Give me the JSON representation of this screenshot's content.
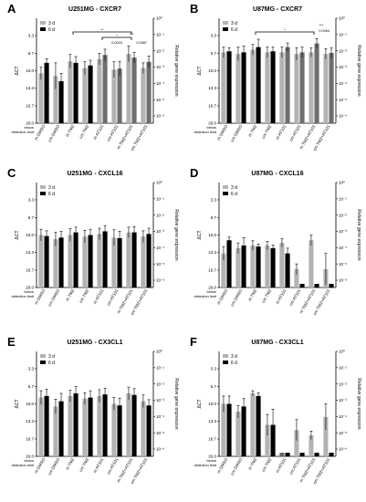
{
  "chart_data": [
    {
      "letter": "A",
      "title": "U251MG - CXCR7",
      "type": "bar",
      "categories": [
        "m DMSO",
        "cm DMSO",
        "m TMZ",
        "cm TMZ",
        "m AT101",
        "cm AT101",
        "m TMZ+AT101",
        "cm TMZ+AT101"
      ],
      "series": [
        {
          "name": "3 d",
          "values": [
            10.5,
            11.0,
            8.2,
            9.5,
            7.8,
            9.8,
            6.8,
            9.5
          ],
          "errors": [
            1.2,
            2.5,
            1.3,
            1.2,
            1.1,
            1.5,
            1.5,
            1.0
          ]
        },
        {
          "name": "6 d",
          "values": [
            8.5,
            12.0,
            8.5,
            9.0,
            7.0,
            9.6,
            7.5,
            8.3
          ],
          "errors": [
            0.8,
            1.5,
            1.2,
            1.0,
            1.1,
            1.4,
            1.0,
            1.1
          ]
        }
      ],
      "ylabel": "ΔCT",
      "y2label": "Relative gene expression",
      "yticks": [
        "3.3",
        "6.7",
        "10.0",
        "13.3",
        "16.7",
        "20.0"
      ],
      "y2ticks": [
        "10⁰",
        "10⁻¹",
        "10⁻²",
        "10⁻³",
        "10⁻⁴",
        "10⁻⁵",
        "10⁻⁶"
      ],
      "ylim": [
        20,
        0
      ],
      "below_label": [
        "below",
        "detection limit"
      ],
      "legend": "top-left",
      "annotations": [
        "**",
        "*",
        "***",
        "0.0016",
        "0.0587"
      ]
    },
    {
      "letter": "B",
      "title": "U87MG - CXCR7",
      "type": "bar",
      "categories": [
        "m DMSO",
        "cm DMSO",
        "m TMZ",
        "cm TMZ",
        "m AT101",
        "cm AT101",
        "m TMZ+AT101",
        "cm TMZ+AT101"
      ],
      "series": [
        {
          "name": "3 d",
          "values": [
            6.5,
            6.8,
            6.0,
            6.5,
            6.5,
            6.8,
            6.5,
            6.8
          ],
          "errors": [
            1.0,
            1.3,
            1.0,
            1.0,
            1.0,
            1.2,
            0.9,
            1.0
          ]
        },
        {
          "name": "6 d",
          "values": [
            6.3,
            6.5,
            5.5,
            6.3,
            5.5,
            6.5,
            4.8,
            6.6
          ],
          "errors": [
            0.7,
            1.2,
            1.5,
            0.8,
            0.8,
            1.0,
            0.9,
            1.0
          ]
        }
      ],
      "ylabel": "ΔCT",
      "y2label": "Relative gene expression",
      "yticks": [
        "3.3",
        "6.7",
        "10.0",
        "13.3",
        "16.7",
        "20.0"
      ],
      "y2ticks": [
        "10⁰",
        "10⁻¹",
        "10⁻²",
        "10⁻³",
        "10⁻⁴",
        "10⁻⁵",
        "10⁻⁶"
      ],
      "ylim": [
        20,
        0
      ],
      "below_label": [
        "below",
        "detection limit"
      ],
      "legend": "top-left",
      "annotations": [
        "*",
        "***",
        "0.0064"
      ]
    },
    {
      "letter": "C",
      "title": "U251MG - CXCL16",
      "type": "bar",
      "categories": [
        "m DMSO",
        "cm DMSO",
        "m TMZ",
        "cm TMZ",
        "m AT101",
        "cm AT101",
        "m TMZ+AT101",
        "cm TMZ+AT101"
      ],
      "series": [
        {
          "name": "3 d",
          "values": [
            10.0,
            10.8,
            10.0,
            10.3,
            9.8,
            10.5,
            9.5,
            10.3
          ],
          "errors": [
            1.1,
            1.3,
            1.2,
            1.2,
            1.1,
            1.5,
            1.0,
            1.1
          ]
        },
        {
          "name": "6 d",
          "values": [
            10.2,
            10.5,
            9.5,
            10.0,
            9.3,
            10.6,
            9.5,
            9.8
          ],
          "errors": [
            1.0,
            1.2,
            1.0,
            1.1,
            1.1,
            1.3,
            1.1,
            1.1
          ]
        }
      ],
      "ylabel": "ΔCT",
      "y2label": "Relative gene expression",
      "yticks": [
        "3.3",
        "6.7",
        "10.0",
        "13.3",
        "16.7",
        "20.0"
      ],
      "y2ticks": [
        "10⁰",
        "10⁻¹",
        "10⁻²",
        "10⁻³",
        "10⁻⁴",
        "10⁻⁵",
        "10⁻⁶"
      ],
      "ylim": [
        20,
        0
      ],
      "below_label": [
        "below",
        "detection limit"
      ],
      "legend": "top-left",
      "annotations": []
    },
    {
      "letter": "D",
      "title": "U87MG - CXCL16",
      "type": "bar",
      "categories": [
        "m DMSO",
        "cm DMSO",
        "m TMZ",
        "cm TMZ",
        "m AT101",
        "cm AT101",
        "m TMZ+AT101",
        "cm TMZ+AT101"
      ],
      "series": [
        {
          "name": "3 d",
          "values": [
            13.5,
            12.5,
            12.0,
            12.0,
            11.5,
            16.5,
            11.0,
            16.5
          ],
          "errors": [
            1.3,
            1.0,
            0.9,
            0.8,
            0.8,
            1.0,
            1.0,
            3.0
          ]
        },
        {
          "name": "6 d",
          "values": [
            11.0,
            12.0,
            12.2,
            12.5,
            13.5,
            null,
            null,
            null
          ],
          "errors": [
            0.6,
            1.5,
            0.5,
            0.6,
            1.0,
            0,
            0,
            0
          ]
        }
      ],
      "ylabel": "ΔCT",
      "y2label": "Relative gene expression",
      "yticks": [
        "3.3",
        "6.7",
        "10.0",
        "13.3",
        "16.7",
        "20.0"
      ],
      "y2ticks": [
        "10⁰",
        "10⁻¹",
        "10⁻²",
        "10⁻³",
        "10⁻⁴",
        "10⁻⁵",
        "10⁻⁶"
      ],
      "ylim": [
        20,
        0
      ],
      "below_label": [
        "below",
        "detection limit"
      ],
      "legend": "top-left",
      "annotations": []
    },
    {
      "letter": "E",
      "title": "U251MG - CX3CL1",
      "type": "bar",
      "categories": [
        "m DMSO",
        "cm DMSO",
        "m TMZ",
        "cm TMZ",
        "m AT101",
        "cm AT101",
        "m TMZ+AT101",
        "cm TMZ+AT101"
      ],
      "series": [
        {
          "name": "3 d",
          "values": [
            8.8,
            10.5,
            8.5,
            9.0,
            8.5,
            10.0,
            8.0,
            9.5
          ],
          "errors": [
            1.3,
            1.4,
            1.1,
            1.1,
            1.2,
            1.2,
            1.2,
            1.2
          ]
        },
        {
          "name": "6 d",
          "values": [
            8.5,
            9.5,
            8.0,
            8.8,
            8.2,
            10.3,
            8.3,
            10.3
          ],
          "errors": [
            1.3,
            1.5,
            1.3,
            1.3,
            1.2,
            1.4,
            1.2,
            1.1
          ]
        }
      ],
      "ylabel": "ΔCT",
      "y2label": "Relative gene expression",
      "yticks": [
        "3.3",
        "6.7",
        "10.0",
        "13.3",
        "16.7",
        "20.0"
      ],
      "y2ticks": [
        "10⁰",
        "10⁻¹",
        "10⁻²",
        "10⁻³",
        "10⁻⁴",
        "10⁻⁵",
        "10⁻⁶"
      ],
      "ylim": [
        20,
        0
      ],
      "below_label": [
        "below",
        "detection limit"
      ],
      "legend": "top-left",
      "annotations": []
    },
    {
      "letter": "F",
      "title": "U87MG - CX3CL1",
      "type": "bar",
      "categories": [
        "m DMSO",
        "cm DMSO",
        "m TMZ",
        "cm TMZ",
        "m AT101",
        "cm AT101",
        "m TMZ+AT101",
        "cm TMZ+AT101"
      ],
      "series": [
        {
          "name": "3 d",
          "values": [
            10.0,
            11.5,
            8.0,
            14.0,
            null,
            15.0,
            16.0,
            12.5
          ],
          "errors": [
            1.5,
            1.2,
            0.5,
            2.0,
            0,
            2.0,
            0.8,
            2.5
          ]
        },
        {
          "name": "6 d",
          "values": [
            10.0,
            10.5,
            8.5,
            14.0,
            null,
            null,
            null,
            null
          ],
          "errors": [
            1.5,
            1.5,
            0.6,
            3.0,
            0,
            0,
            0,
            0
          ]
        }
      ],
      "ylabel": "ΔCT",
      "y2label": "Relative gene expression",
      "yticks": [
        "3.3",
        "6.7",
        "10.0",
        "13.3",
        "16.7",
        "20.0"
      ],
      "y2ticks": [
        "10⁰",
        "10⁻¹",
        "10⁻²",
        "10⁻³",
        "10⁻⁴",
        "10⁻⁵",
        "10⁻⁶"
      ],
      "ylim": [
        20,
        0
      ],
      "below_label": [
        "below",
        "detection limit"
      ],
      "legend": "top-left",
      "annotations": []
    }
  ],
  "colors": {
    "d3": "#b3b3b3",
    "d6": "#000000",
    "d6_alt": "#6e6e6e"
  }
}
